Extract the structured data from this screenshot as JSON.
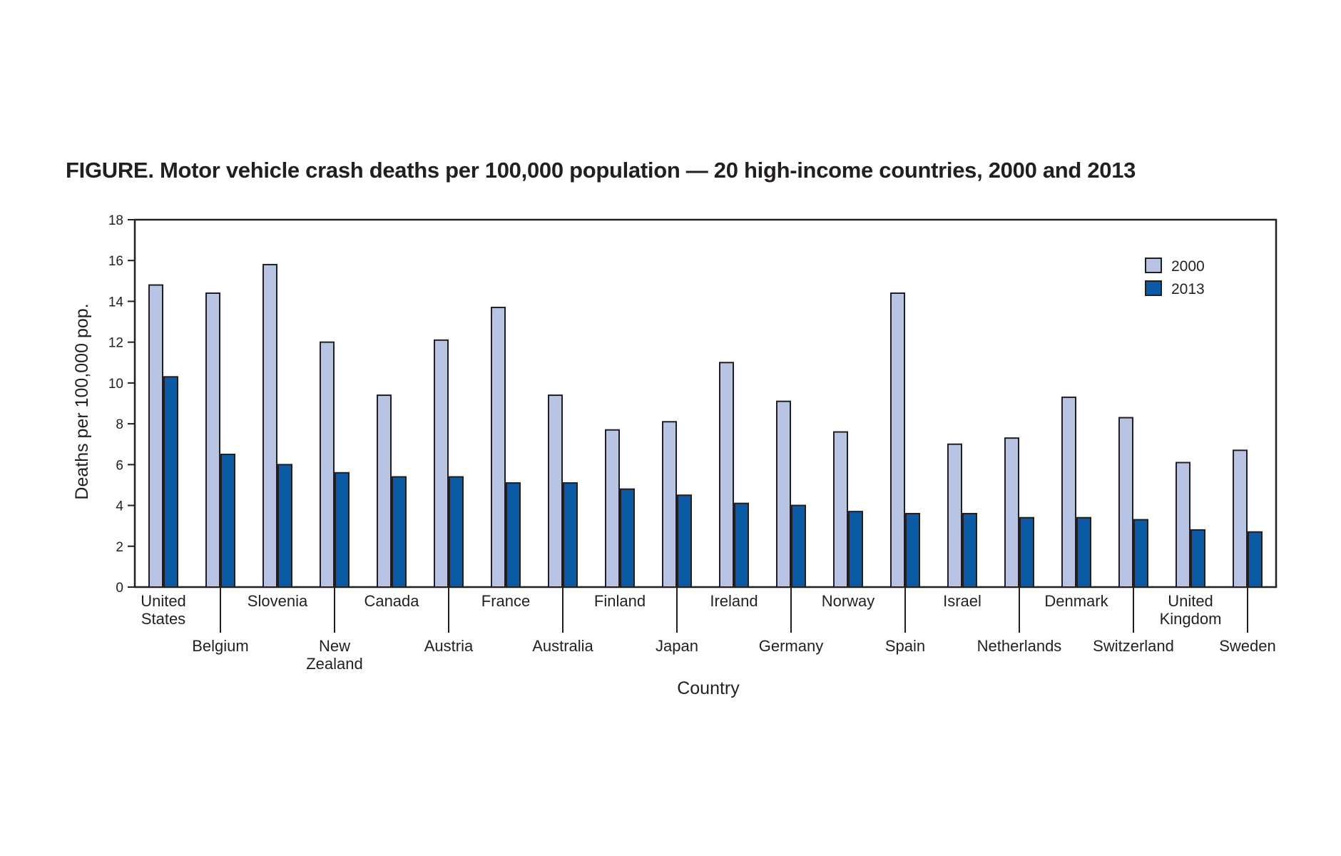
{
  "figure": {
    "title_prefix": "FIGURE",
    "title_text": ". Motor vehicle crash deaths per 100,000 population — 20 high-income countries, 2000 and 2013"
  },
  "chart_data": {
    "type": "bar",
    "title": "FIGURE. Motor vehicle crash deaths per 100,000 population — 20 high-income countries, 2000 and 2013",
    "xlabel": "Country",
    "ylabel": "Deaths per 100,000 pop.",
    "ylim": [
      0,
      18
    ],
    "yticks": [
      0,
      2,
      4,
      6,
      8,
      10,
      12,
      14,
      16,
      18
    ],
    "grid": false,
    "legend_position": "top-right",
    "categories": [
      "United States",
      "Belgium",
      "Slovenia",
      "New Zealand",
      "Canada",
      "Austria",
      "France",
      "Australia",
      "Finland",
      "Japan",
      "Ireland",
      "Germany",
      "Norway",
      "Spain",
      "Israel",
      "Netherlands",
      "Denmark",
      "Switzerland",
      "United Kingdom",
      "Sweden"
    ],
    "category_lines": [
      [
        "United",
        "States"
      ],
      [
        "Belgium"
      ],
      [
        "Slovenia"
      ],
      [
        "New",
        "Zealand"
      ],
      [
        "Canada"
      ],
      [
        "Austria"
      ],
      [
        "France"
      ],
      [
        "Australia"
      ],
      [
        "Finland"
      ],
      [
        "Japan"
      ],
      [
        "Ireland"
      ],
      [
        "Germany"
      ],
      [
        "Norway"
      ],
      [
        "Spain"
      ],
      [
        "Israel"
      ],
      [
        "Netherlands"
      ],
      [
        "Denmark"
      ],
      [
        "Switzerland"
      ],
      [
        "United",
        "Kingdom"
      ],
      [
        "Sweden"
      ]
    ],
    "series": [
      {
        "name": "2000",
        "color": "#b8c4e4",
        "values": [
          14.8,
          14.4,
          15.8,
          12.0,
          9.4,
          12.1,
          13.7,
          9.4,
          7.7,
          8.1,
          11.0,
          9.1,
          7.6,
          14.4,
          7.0,
          7.3,
          9.3,
          8.3,
          6.1,
          6.7
        ]
      },
      {
        "name": "2013",
        "color": "#0c5aa6",
        "values": [
          10.3,
          6.5,
          6.0,
          5.6,
          5.4,
          5.4,
          5.1,
          5.1,
          4.8,
          4.5,
          4.1,
          4.0,
          3.7,
          3.6,
          3.6,
          3.4,
          3.4,
          3.3,
          2.8,
          2.7
        ]
      }
    ]
  }
}
